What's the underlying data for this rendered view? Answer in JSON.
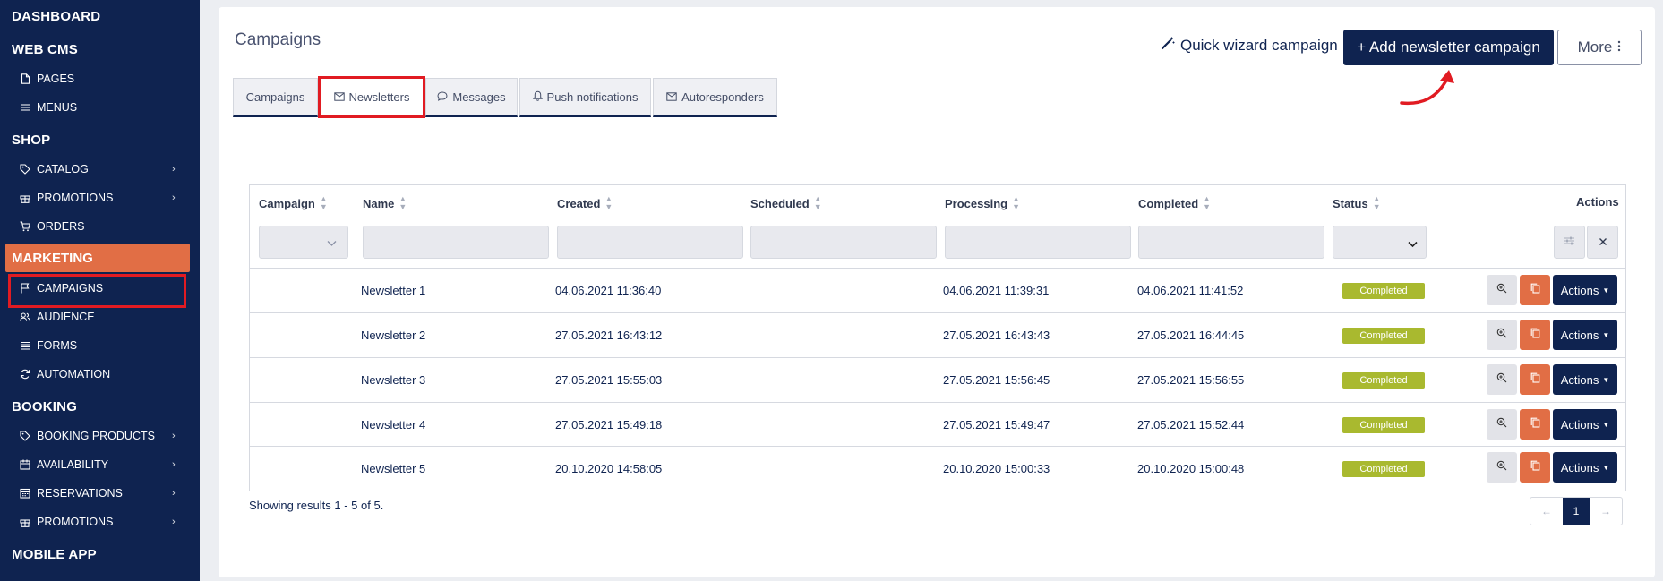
{
  "sidebar": {
    "sections": {
      "dashboard": "DASHBOARD",
      "webcms": "WEB CMS",
      "shop": "SHOP",
      "marketing": "MARKETING",
      "booking": "BOOKING",
      "mobile": "MOBILE APP"
    },
    "items": {
      "pages": "PAGES",
      "menus": "MENUS",
      "catalog": "CATALOG",
      "promotions": "PROMOTIONS",
      "orders": "ORDERS",
      "campaigns": "CAMPAIGNS",
      "audience": "AUDIENCE",
      "forms": "FORMS",
      "automation": "AUTOMATION",
      "booking_products": "BOOKING PRODUCTS",
      "availability": "AVAILABILITY",
      "reservations": "RESERVATIONS",
      "booking_promotions": "PROMOTIONS"
    }
  },
  "page": {
    "title": "Campaigns",
    "tabs": [
      "Campaigns",
      "Newsletters",
      "Messages",
      "Push notifications",
      "Autoresponders"
    ],
    "active_tab": "Newsletters"
  },
  "toolbar": {
    "wizard_label": "Quick wizard campaign",
    "add_label": "+ Add newsletter campaign",
    "more_label": "More"
  },
  "table": {
    "headers": [
      "Campaign",
      "Name",
      "Created",
      "Scheduled",
      "Processing",
      "Completed",
      "Status",
      "Actions"
    ],
    "rows": [
      {
        "name": "Newsletter 1",
        "created": "04.06.2021 11:36:40",
        "scheduled": "",
        "processing": "04.06.2021 11:39:31",
        "completed": "04.06.2021 11:41:52",
        "status": "Completed"
      },
      {
        "name": "Newsletter 2",
        "created": "27.05.2021 16:43:12",
        "scheduled": "",
        "processing": "27.05.2021 16:43:43",
        "completed": "27.05.2021 16:44:45",
        "status": "Completed"
      },
      {
        "name": "Newsletter 3",
        "created": "27.05.2021 15:55:03",
        "scheduled": "",
        "processing": "27.05.2021 15:56:45",
        "completed": "27.05.2021 15:56:55",
        "status": "Completed"
      },
      {
        "name": "Newsletter 4",
        "created": "27.05.2021 15:49:18",
        "scheduled": "",
        "processing": "27.05.2021 15:49:47",
        "completed": "27.05.2021 15:52:44",
        "status": "Completed"
      },
      {
        "name": "Newsletter 5",
        "created": "20.10.2020 14:58:05",
        "scheduled": "",
        "processing": "20.10.2020 15:00:33",
        "completed": "20.10.2020 15:00:48",
        "status": "Completed"
      }
    ],
    "row_action_label": "Actions"
  },
  "footer": {
    "showing": "Showing results 1 - 5 of 5.",
    "pager_prev": "←",
    "pager_current": "1",
    "pager_next": "→"
  },
  "colors": {
    "navy": "#0f2350",
    "accent_orange": "#e16e45",
    "status_green": "#a9b92f",
    "highlight_red": "#e11b22"
  }
}
